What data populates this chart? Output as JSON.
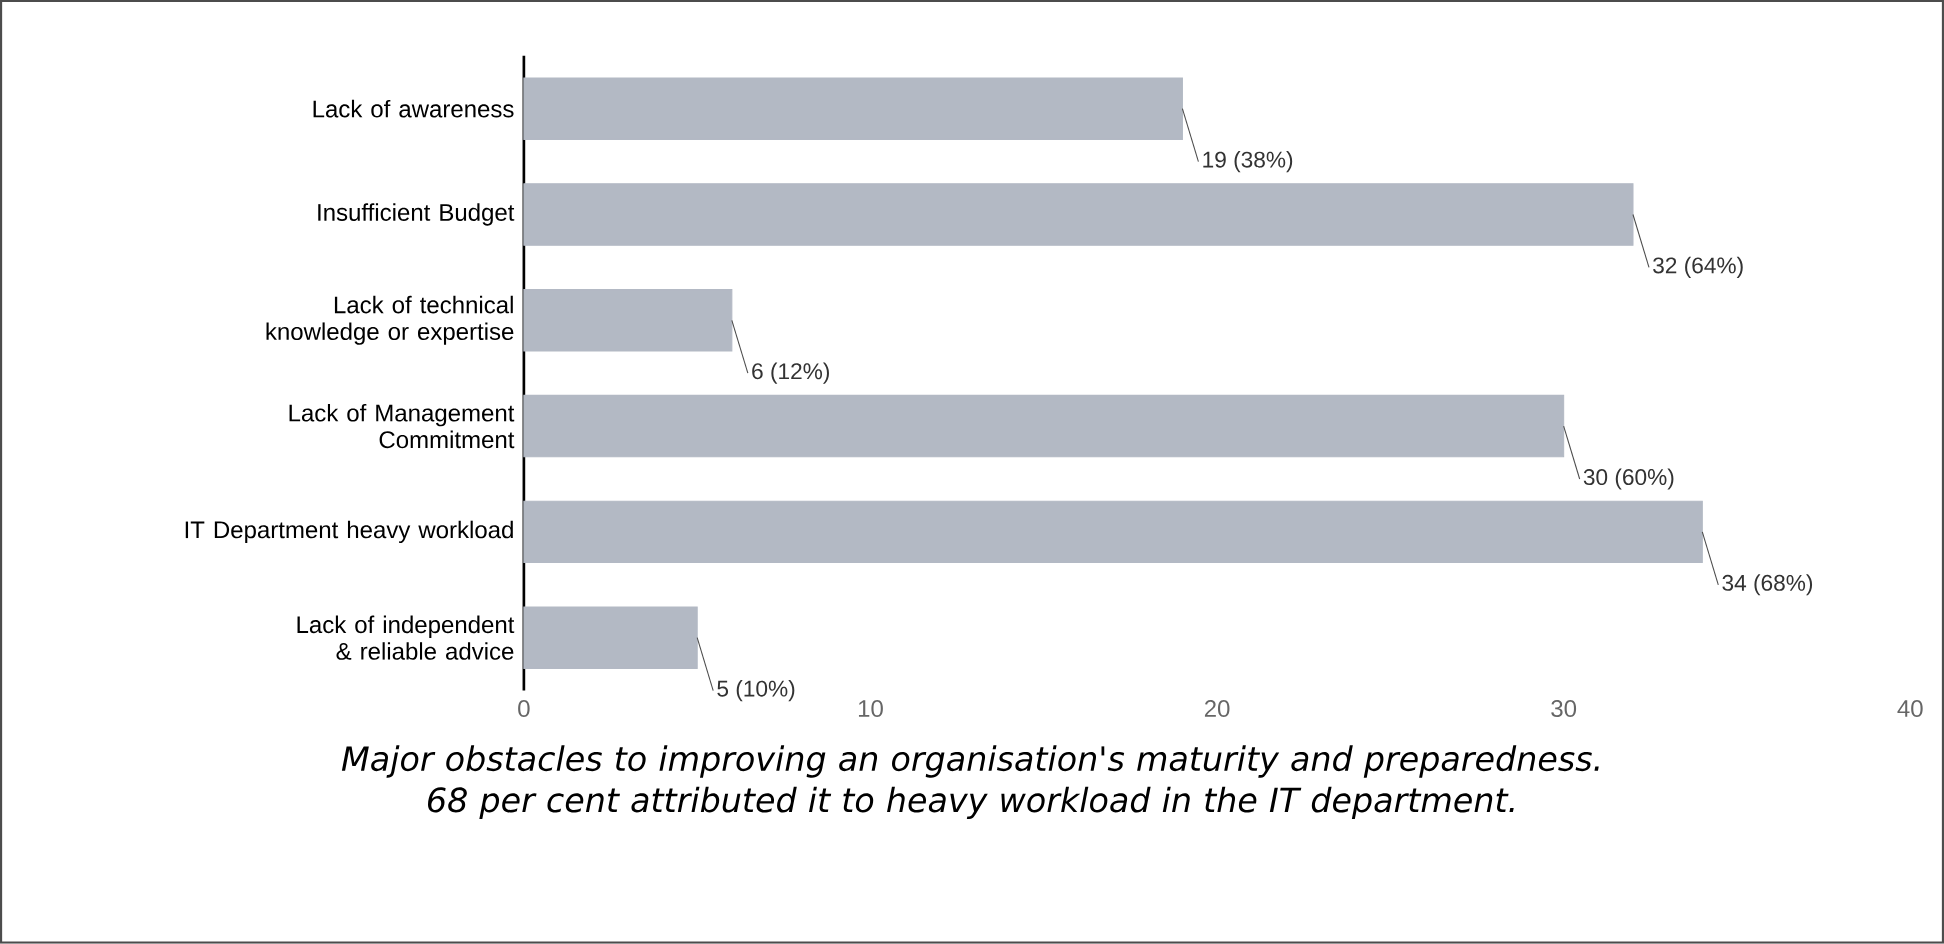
{
  "chart_data": {
    "type": "bar",
    "orientation": "horizontal",
    "categories": [
      "Lack of awareness",
      "Insufficient Budget",
      "Lack of technical knowledge or expertise",
      "Lack of Management Commitment",
      "IT Department heavy workload",
      "Lack of independent & reliable advice"
    ],
    "values": [
      19,
      32,
      6,
      30,
      34,
      5
    ],
    "value_labels": [
      "19 (38%)",
      "32 (64%)",
      "6 (12%)",
      "30 (60%)",
      "34 (68%)",
      "5 (10%)"
    ],
    "color": "#b3b9c4",
    "xlim": [
      0,
      40
    ],
    "xticks": [
      0,
      10,
      20,
      30,
      40
    ],
    "annotations": [
      "Major obstacles to improving an organisation's maturity and preparedness. 68 per cent attributed it to heavy workload in the IT department."
    ]
  }
}
